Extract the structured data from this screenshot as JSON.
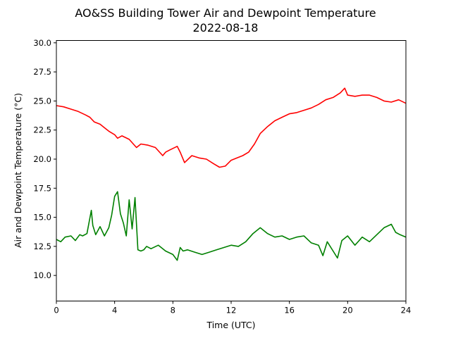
{
  "chart_data": {
    "type": "line",
    "title": "AO&SS Building Tower Air and Dewpoint Temperature",
    "subtitle": "2022-08-18",
    "xlabel": "Time (UTC)",
    "ylabel": "Air and Dewpoint Temperature (°C)",
    "xlim": [
      0,
      24
    ],
    "ylim": [
      7.8,
      30.2
    ],
    "xticks": [
      0,
      4,
      8,
      12,
      16,
      20,
      24
    ],
    "xtick_labels": [
      "0",
      "4",
      "8",
      "12",
      "16",
      "20",
      "24"
    ],
    "yticks": [
      10,
      12.5,
      15,
      17.5,
      20,
      22.5,
      25,
      27.5,
      30
    ],
    "ytick_labels": [
      "10.0",
      "12.5",
      "15.0",
      "17.5",
      "20.0",
      "22.5",
      "25.0",
      "27.5",
      "30.0"
    ],
    "grid": false,
    "series": [
      {
        "color": "#ff0000",
        "x": [
          0,
          0.5,
          1,
          1.5,
          2,
          2.3,
          2.6,
          3,
          3.3,
          3.6,
          4,
          4.2,
          4.5,
          5,
          5.5,
          5.8,
          6.3,
          6.8,
          7.3,
          7.5,
          7.8,
          8.3,
          8.5,
          8.8,
          9.3,
          9.8,
          10.3,
          10.8,
          11.2,
          11.6,
          12,
          12.4,
          12.8,
          13.2,
          13.6,
          14,
          14.5,
          15,
          15.5,
          16,
          16.5,
          17,
          17.5,
          18,
          18.5,
          19,
          19.5,
          19.8,
          20,
          20.5,
          21,
          21.5,
          22,
          22.5,
          23,
          23.5,
          24
        ],
        "y": [
          24.6,
          24.5,
          24.3,
          24.1,
          23.8,
          23.6,
          23.2,
          23.0,
          22.7,
          22.4,
          22.1,
          21.8,
          22.0,
          21.7,
          21.0,
          21.3,
          21.2,
          21.0,
          20.3,
          20.6,
          20.8,
          21.1,
          20.6,
          19.7,
          20.3,
          20.1,
          20.0,
          19.6,
          19.3,
          19.4,
          19.9,
          20.1,
          20.3,
          20.6,
          21.3,
          22.2,
          22.8,
          23.3,
          23.6,
          23.9,
          24.0,
          24.2,
          24.4,
          24.7,
          25.1,
          25.3,
          25.7,
          26.1,
          25.5,
          25.4,
          25.5,
          25.5,
          25.3,
          25.0,
          24.9,
          25.1,
          24.8
        ]
      },
      {
        "color": "#008000",
        "x": [
          0,
          0.3,
          0.6,
          1,
          1.3,
          1.6,
          1.8,
          2.1,
          2.4,
          2.5,
          2.7,
          3,
          3.3,
          3.6,
          3.8,
          4,
          4.2,
          4.4,
          4.6,
          4.8,
          5,
          5.2,
          5.4,
          5.6,
          5.8,
          6,
          6.2,
          6.5,
          7,
          7.5,
          8,
          8.3,
          8.5,
          8.7,
          9,
          9.5,
          10,
          10.5,
          11,
          11.5,
          12,
          12.5,
          13,
          13.5,
          14,
          14.5,
          15,
          15.5,
          16,
          16.5,
          17,
          17.5,
          18,
          18.3,
          18.6,
          19,
          19.3,
          19.6,
          20,
          20.5,
          21,
          21.5,
          22,
          22.5,
          23,
          23.3,
          23.6,
          24
        ],
        "y": [
          13.1,
          12.9,
          13.3,
          13.4,
          13.0,
          13.5,
          13.4,
          13.6,
          15.6,
          14.3,
          13.5,
          14.2,
          13.4,
          14.1,
          15.2,
          16.8,
          17.2,
          15.3,
          14.5,
          13.4,
          16.5,
          14.0,
          16.7,
          12.2,
          12.1,
          12.2,
          12.5,
          12.3,
          12.6,
          12.1,
          11.8,
          11.3,
          12.4,
          12.1,
          12.2,
          12.0,
          11.8,
          12.0,
          12.2,
          12.4,
          12.6,
          12.5,
          12.9,
          13.6,
          14.1,
          13.6,
          13.3,
          13.4,
          13.1,
          13.3,
          13.4,
          12.8,
          12.6,
          11.7,
          12.9,
          12.1,
          11.5,
          13.0,
          13.4,
          12.6,
          13.3,
          12.9,
          13.5,
          14.1,
          14.4,
          13.7,
          13.5,
          13.3
        ]
      }
    ]
  }
}
